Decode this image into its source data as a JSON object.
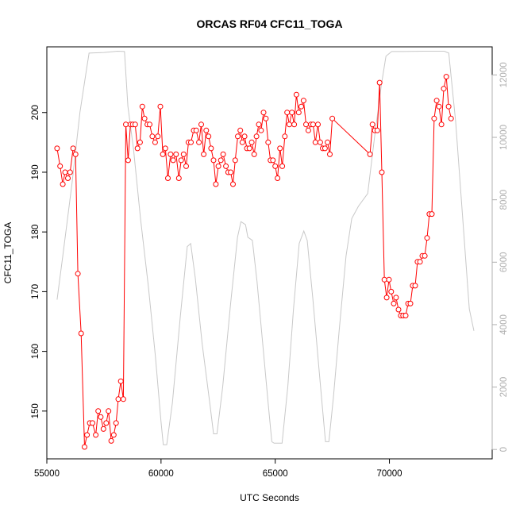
{
  "chart_data": {
    "type": "line",
    "title": "ORCAS RF04 CFC11_TOGA",
    "xlabel": "UTC Seconds",
    "ylabel": "CFC11_TOGA",
    "xlim": [
      55000,
      74500
    ],
    "ylim": [
      142,
      211
    ],
    "y2lim": [
      -300,
      12900
    ],
    "x_ticks": [
      55000,
      60000,
      65000,
      70000
    ],
    "y_ticks": [
      150,
      160,
      170,
      180,
      190,
      200
    ],
    "y2_ticks": [
      0,
      2000,
      4000,
      6000,
      8000,
      10000,
      12000
    ],
    "colors": {
      "cfc11": "#ff0000",
      "altitude": "#c8c8c8"
    },
    "series": [
      {
        "values": [
          [
            55450,
            194
          ],
          [
            55580,
            191
          ],
          [
            55700,
            188
          ],
          [
            55800,
            190
          ],
          [
            55920,
            189
          ],
          [
            56020,
            190
          ],
          [
            56150,
            194
          ],
          [
            56260,
            193
          ],
          [
            56360,
            173
          ],
          [
            56500,
            163
          ],
          [
            56650,
            144
          ],
          [
            56760,
            146
          ],
          [
            56880,
            148
          ],
          [
            57000,
            148
          ],
          [
            57140,
            146
          ],
          [
            57250,
            150
          ],
          [
            57360,
            149
          ],
          [
            57480,
            147
          ],
          [
            57600,
            148
          ],
          [
            57700,
            150
          ],
          [
            57820,
            145
          ],
          [
            57930,
            146
          ],
          [
            58030,
            148
          ],
          [
            58130,
            152
          ],
          [
            58240,
            155
          ],
          [
            58350,
            152
          ],
          [
            58460,
            198
          ],
          [
            58560,
            192
          ],
          [
            58660,
            198
          ],
          [
            58760,
            198
          ],
          [
            58870,
            198
          ],
          [
            58970,
            194
          ],
          [
            59080,
            195
          ],
          [
            59180,
            201
          ],
          [
            59280,
            199
          ],
          [
            59400,
            198
          ],
          [
            59500,
            198
          ],
          [
            59620,
            196
          ],
          [
            59740,
            195
          ],
          [
            59860,
            196
          ],
          [
            59970,
            201
          ],
          [
            60080,
            193
          ],
          [
            60190,
            194
          ],
          [
            60300,
            189
          ],
          [
            60420,
            193
          ],
          [
            60530,
            192
          ],
          [
            60660,
            193
          ],
          [
            60780,
            189
          ],
          [
            60880,
            192
          ],
          [
            60990,
            193
          ],
          [
            61100,
            191
          ],
          [
            61200,
            195
          ],
          [
            61310,
            195
          ],
          [
            61430,
            197
          ],
          [
            61540,
            197
          ],
          [
            61660,
            195
          ],
          [
            61760,
            198
          ],
          [
            61870,
            193
          ],
          [
            61980,
            197
          ],
          [
            62080,
            196
          ],
          [
            62190,
            194
          ],
          [
            62300,
            192
          ],
          [
            62400,
            188
          ],
          [
            62510,
            191
          ],
          [
            62620,
            192
          ],
          [
            62720,
            193
          ],
          [
            62840,
            191
          ],
          [
            62940,
            190
          ],
          [
            63050,
            190
          ],
          [
            63150,
            188
          ],
          [
            63250,
            192
          ],
          [
            63360,
            196
          ],
          [
            63470,
            197
          ],
          [
            63560,
            195
          ],
          [
            63660,
            196
          ],
          [
            63760,
            194
          ],
          [
            63870,
            194
          ],
          [
            63970,
            195
          ],
          [
            64080,
            193
          ],
          [
            64180,
            196
          ],
          [
            64280,
            198
          ],
          [
            64380,
            197
          ],
          [
            64490,
            200
          ],
          [
            64590,
            199
          ],
          [
            64690,
            195
          ],
          [
            64790,
            192
          ],
          [
            64900,
            192
          ],
          [
            65000,
            191
          ],
          [
            65100,
            189
          ],
          [
            65210,
            194
          ],
          [
            65310,
            191
          ],
          [
            65420,
            196
          ],
          [
            65520,
            200
          ],
          [
            65620,
            198
          ],
          [
            65730,
            200
          ],
          [
            65830,
            198
          ],
          [
            65930,
            203
          ],
          [
            66030,
            200
          ],
          [
            66140,
            201
          ],
          [
            66240,
            202
          ],
          [
            66350,
            198
          ],
          [
            66450,
            197
          ],
          [
            66560,
            198
          ],
          [
            66660,
            198
          ],
          [
            66760,
            195
          ],
          [
            66870,
            198
          ],
          [
            66970,
            195
          ],
          [
            67080,
            194
          ],
          [
            67180,
            194
          ],
          [
            67290,
            195
          ],
          [
            67390,
            193
          ],
          [
            67500,
            199
          ],
          [
            69150,
            193
          ],
          [
            69260,
            198
          ],
          [
            69360,
            197
          ],
          [
            69470,
            197
          ],
          [
            69570,
            205
          ],
          [
            69670,
            190
          ],
          [
            69780,
            172
          ],
          [
            69880,
            169
          ],
          [
            69980,
            172
          ],
          [
            70080,
            170
          ],
          [
            70190,
            168
          ],
          [
            70290,
            169
          ],
          [
            70400,
            167
          ],
          [
            70500,
            166
          ],
          [
            70600,
            166
          ],
          [
            70710,
            166
          ],
          [
            70820,
            168
          ],
          [
            70920,
            168
          ],
          [
            71020,
            171
          ],
          [
            71130,
            171
          ],
          [
            71230,
            175
          ],
          [
            71340,
            175
          ],
          [
            71440,
            176
          ],
          [
            71550,
            176
          ],
          [
            71650,
            179
          ],
          [
            71750,
            183
          ],
          [
            71860,
            183
          ],
          [
            71960,
            199
          ],
          [
            72070,
            202
          ],
          [
            72170,
            201
          ],
          [
            72280,
            198
          ],
          [
            72380,
            204
          ],
          [
            72490,
            206
          ],
          [
            72590,
            201
          ],
          [
            72700,
            199
          ]
        ]
      },
      {
        "values": [
          [
            55450,
            4800
          ],
          [
            55700,
            6200
          ],
          [
            56100,
            8500
          ],
          [
            56450,
            10800
          ],
          [
            56700,
            12000
          ],
          [
            56850,
            12700
          ],
          [
            57500,
            12720
          ],
          [
            58100,
            12760
          ],
          [
            58400,
            12750
          ],
          [
            58550,
            11000
          ],
          [
            58800,
            9600
          ],
          [
            59100,
            7400
          ],
          [
            59450,
            5200
          ],
          [
            59750,
            3000
          ],
          [
            60000,
            900
          ],
          [
            60100,
            150
          ],
          [
            60250,
            150
          ],
          [
            60500,
            1500
          ],
          [
            60850,
            4300
          ],
          [
            61150,
            6500
          ],
          [
            61300,
            6600
          ],
          [
            61500,
            5500
          ],
          [
            61800,
            3400
          ],
          [
            62150,
            1400
          ],
          [
            62300,
            500
          ],
          [
            62450,
            500
          ],
          [
            62700,
            2000
          ],
          [
            63050,
            4700
          ],
          [
            63350,
            6800
          ],
          [
            63500,
            7300
          ],
          [
            63700,
            7200
          ],
          [
            63800,
            6800
          ],
          [
            64000,
            6700
          ],
          [
            64200,
            5400
          ],
          [
            64450,
            3400
          ],
          [
            64700,
            1400
          ],
          [
            64850,
            250
          ],
          [
            64950,
            200
          ],
          [
            65300,
            200
          ],
          [
            65550,
            2000
          ],
          [
            65800,
            4500
          ],
          [
            66050,
            6600
          ],
          [
            66250,
            7000
          ],
          [
            66400,
            6700
          ],
          [
            66650,
            4800
          ],
          [
            66950,
            2300
          ],
          [
            67200,
            250
          ],
          [
            67350,
            250
          ],
          [
            67550,
            1700
          ],
          [
            67800,
            3800
          ],
          [
            68100,
            6200
          ],
          [
            68350,
            7400
          ],
          [
            68650,
            7800
          ],
          [
            69050,
            8200
          ],
          [
            69350,
            10000
          ],
          [
            69650,
            11700
          ],
          [
            69850,
            12600
          ],
          [
            70100,
            12750
          ],
          [
            70600,
            12750
          ],
          [
            71500,
            12760
          ],
          [
            72400,
            12760
          ],
          [
            72600,
            12700
          ],
          [
            72900,
            10500
          ],
          [
            73200,
            7500
          ],
          [
            73500,
            4500
          ],
          [
            73700,
            3800
          ]
        ]
      }
    ]
  }
}
